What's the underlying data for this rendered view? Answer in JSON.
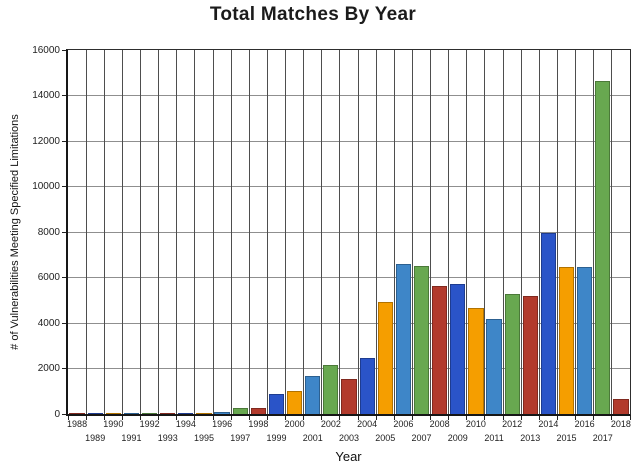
{
  "title": "Total Matches By Year",
  "chart_data": {
    "type": "bar",
    "title": "Total Matches By Year",
    "xlabel": "Year",
    "ylabel": "# of Vulnerabilities Meeting Specified Limitations",
    "ylim": [
      0,
      16000
    ],
    "ytick_step": 2000,
    "yticks": [
      0,
      2000,
      4000,
      6000,
      8000,
      10000,
      12000,
      14000,
      16000
    ],
    "grid": true,
    "legend": "none",
    "categories": [
      "1988",
      "1989",
      "1990",
      "1991",
      "1992",
      "1993",
      "1994",
      "1995",
      "1996",
      "1997",
      "1998",
      "1999",
      "2000",
      "2001",
      "2002",
      "2003",
      "2004",
      "2005",
      "2006",
      "2007",
      "2008",
      "2009",
      "2010",
      "2011",
      "2012",
      "2013",
      "2014",
      "2015",
      "2016",
      "2017",
      "2018"
    ],
    "values": [
      2,
      3,
      11,
      15,
      13,
      13,
      25,
      25,
      75,
      252,
      246,
      894,
      1020,
      1677,
      2156,
      1527,
      2451,
      4935,
      6610,
      6520,
      5632,
      5736,
      4653,
      4155,
      5297,
      5191,
      7946,
      6480,
      6447,
      14645,
      650
    ],
    "bar_colors": [
      "red",
      "blue",
      "orange",
      "lightblue",
      "green",
      "red",
      "blue",
      "orange",
      "lightblue",
      "green",
      "red",
      "blue",
      "orange",
      "lightblue",
      "green",
      "red",
      "blue",
      "orange",
      "lightblue",
      "green",
      "red",
      "blue",
      "orange",
      "lightblue",
      "green",
      "red",
      "blue",
      "orange",
      "lightblue",
      "green",
      "red"
    ],
    "palette": {
      "blue": "#2a54c8",
      "orange": "#f59e00",
      "lightblue": "#3e86c8",
      "green": "#68a850",
      "red": "#b23a2c"
    },
    "gridline_color_horizontal": "#8f8f8f",
    "gridline_color_vertical": "#4e4e4e",
    "x_label_rows": "staggered-two-rows"
  }
}
